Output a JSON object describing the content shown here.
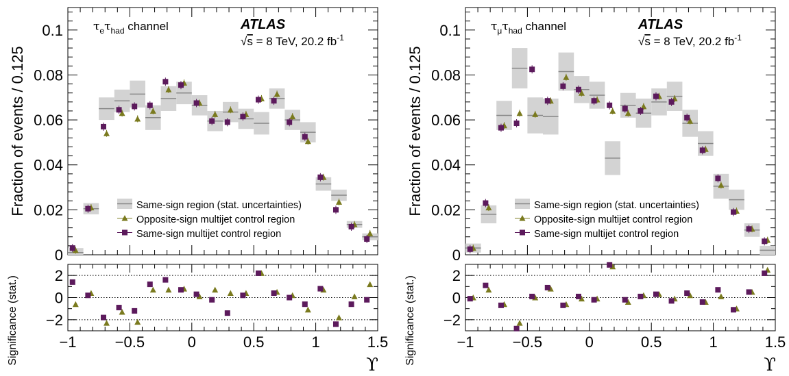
{
  "chart_data": [
    {
      "type": "scatter",
      "channel_label": "τeτhad channel",
      "channel_tau": "τ",
      "channel_sub1": "e",
      "channel_sub2": "had",
      "channel_word": "channel",
      "experiment": "ATLAS",
      "energy_label": "√s = 8 TeV, 20.2 fb",
      "energy_prefix": "s",
      "energy_text": " = 8 TeV, 20.2 fb",
      "energy_sup": "-1",
      "ylabel": "Fraction of events / 0.125",
      "ylabel_bottom": "Significance (stat.)",
      "xlabel": "ϒ",
      "xlim": [
        -1.0,
        1.5
      ],
      "ylim": [
        0,
        0.11
      ],
      "ylim_bottom": [
        -3,
        3
      ],
      "x_ticks": [
        "−1",
        "−0.5",
        "0",
        "0.5",
        "1",
        "1.5"
      ],
      "y_ticks": [
        "0",
        "0.02",
        "0.04",
        "0.06",
        "0.08",
        "0.1"
      ],
      "y_ticks_bottom": [
        "−2",
        "0",
        "2"
      ],
      "legend_position": "center-left",
      "legend": [
        "Same-sign region (stat. uncertainties)",
        "Opposite-sign multijet control region",
        "Same-sign multijet control region"
      ],
      "colors": {
        "box": "#d3d3d3",
        "line": "#888888",
        "triangle": "#7a7a1e",
        "square": "#5c1a5c"
      },
      "series": [
        {
          "name": "Same-sign region (stat. uncertainties)",
          "marker": "box",
          "points": [
            [
              -0.9375,
              0.001,
              0.002
            ],
            [
              -0.8125,
              0.0205,
              0.0025
            ],
            [
              -0.6875,
              0.065,
              0.005
            ],
            [
              -0.5625,
              0.0685,
              0.005
            ],
            [
              -0.4375,
              0.0715,
              0.006
            ],
            [
              -0.3125,
              0.061,
              0.0055
            ],
            [
              -0.1875,
              0.0695,
              0.0055
            ],
            [
              -0.0625,
              0.072,
              0.005
            ],
            [
              0.0625,
              0.0665,
              0.0045
            ],
            [
              0.1875,
              0.0595,
              0.0045
            ],
            [
              0.3125,
              0.0635,
              0.0045
            ],
            [
              0.4375,
              0.0605,
              0.0045
            ],
            [
              0.5625,
              0.0585,
              0.005
            ],
            [
              0.6875,
              0.0695,
              0.0045
            ],
            [
              0.8125,
              0.06,
              0.0045
            ],
            [
              0.9375,
              0.0545,
              0.0045
            ],
            [
              1.0625,
              0.0315,
              0.003
            ],
            [
              1.1875,
              0.0265,
              0.0025
            ],
            [
              1.3125,
              0.0135,
              0.0015
            ],
            [
              1.4375,
              0.008,
              0.0015
            ]
          ]
        },
        {
          "name": "Opposite-sign multijet control region",
          "marker": "triangle",
          "points": [
            [
              -0.9375,
              0.002
            ],
            [
              -0.8125,
              0.021
            ],
            [
              -0.6875,
              0.054
            ],
            [
              -0.5625,
              0.063
            ],
            [
              -0.4375,
              0.0605
            ],
            [
              -0.3125,
              0.064
            ],
            [
              -0.1875,
              0.0735
            ],
            [
              -0.0625,
              0.0765
            ],
            [
              0.0625,
              0.0675
            ],
            [
              0.1875,
              0.0625
            ],
            [
              0.3125,
              0.0645
            ],
            [
              0.4375,
              0.0625
            ],
            [
              0.5625,
              0.0695
            ],
            [
              0.6875,
              0.0715
            ],
            [
              0.8125,
              0.0615
            ],
            [
              0.9375,
              0.0505
            ],
            [
              1.0625,
              0.0345
            ],
            [
              1.1875,
              0.0235
            ],
            [
              1.3125,
              0.0135
            ],
            [
              1.4375,
              0.0095
            ]
          ]
        },
        {
          "name": "Same-sign multijet control region",
          "marker": "square",
          "points": [
            [
              -0.9625,
              0.003
            ],
            [
              -0.8375,
              0.0205
            ],
            [
              -0.7125,
              0.057
            ],
            [
              -0.5875,
              0.0645
            ],
            [
              -0.4625,
              0.066
            ],
            [
              -0.3375,
              0.0665
            ],
            [
              -0.2125,
              0.077
            ],
            [
              -0.0875,
              0.0755
            ],
            [
              0.0375,
              0.0675
            ],
            [
              0.1625,
              0.0595
            ],
            [
              0.2875,
              0.059
            ],
            [
              0.4125,
              0.0615
            ],
            [
              0.5375,
              0.069
            ],
            [
              0.6625,
              0.0685
            ],
            [
              0.7875,
              0.059
            ],
            [
              0.9125,
              0.0525
            ],
            [
              1.0375,
              0.0345
            ],
            [
              1.1625,
              0.02
            ],
            [
              1.2875,
              0.0125
            ],
            [
              1.4125,
              0.007
            ]
          ]
        }
      ],
      "significance": {
        "triangle": [
          [
            -0.9375,
            -0.6
          ],
          [
            -0.8125,
            0.4
          ],
          [
            -0.6875,
            -2.3
          ],
          [
            -0.5625,
            -1.3
          ],
          [
            -0.4375,
            -2.2
          ],
          [
            -0.3125,
            0.7
          ],
          [
            -0.1875,
            0.7
          ],
          [
            -0.0625,
            0.8
          ],
          [
            0.0625,
            0.1
          ],
          [
            0.1875,
            0.7
          ],
          [
            0.3125,
            0.4
          ],
          [
            0.4375,
            0.4
          ],
          [
            0.5625,
            2.2
          ],
          [
            0.6875,
            0.5
          ],
          [
            0.8125,
            0.2
          ],
          [
            0.9375,
            -1.1
          ],
          [
            1.0625,
            0.7
          ],
          [
            1.1875,
            -1.8
          ],
          [
            1.3125,
            0.1
          ],
          [
            1.4375,
            1.2
          ]
        ],
        "square": [
          [
            -0.9625,
            1.4
          ],
          [
            -0.8375,
            0.2
          ],
          [
            -0.7125,
            -1.8
          ],
          [
            -0.5875,
            -0.9
          ],
          [
            -0.4625,
            -1.2
          ],
          [
            -0.3375,
            1.2
          ],
          [
            -0.2125,
            1.6
          ],
          [
            -0.0875,
            0.7
          ],
          [
            0.0375,
            0.3
          ],
          [
            0.1625,
            -0.2
          ],
          [
            0.2875,
            -1.4
          ],
          [
            0.4125,
            0.2
          ],
          [
            0.5375,
            2.2
          ],
          [
            0.6625,
            0.4
          ],
          [
            0.7875,
            0.0
          ],
          [
            0.9125,
            -0.6
          ],
          [
            1.0375,
            0.8
          ],
          [
            1.1625,
            -2.4
          ],
          [
            1.2875,
            -0.6
          ],
          [
            1.4125,
            -0.2
          ]
        ]
      }
    },
    {
      "type": "scatter",
      "channel_label": "τμτhad channel",
      "channel_tau": "τ",
      "channel_sub1": "μ",
      "channel_sub2": "had",
      "channel_word": "channel",
      "experiment": "ATLAS",
      "energy_label": "√s = 8 TeV, 20.2 fb",
      "energy_prefix": "s",
      "energy_text": " = 8 TeV, 20.2 fb",
      "energy_sup": "-1",
      "ylabel": "Fraction of events / 0.125",
      "ylabel_bottom": "Significance (stat.)",
      "xlabel": "ϒ",
      "xlim": [
        -1.0,
        1.5
      ],
      "ylim": [
        0,
        0.11
      ],
      "ylim_bottom": [
        -3,
        3
      ],
      "x_ticks": [
        "−1",
        "−0.5",
        "0",
        "0.5",
        "1",
        "1.5"
      ],
      "y_ticks": [
        "0",
        "0.02",
        "0.04",
        "0.06",
        "0.08",
        "0.1"
      ],
      "y_ticks_bottom": [
        "−2",
        "0",
        "2"
      ],
      "legend_position": "center-left",
      "legend": [
        "Same-sign region (stat. uncertainties)",
        "Opposite-sign multijet control region",
        "Same-sign multijet control region"
      ],
      "colors": {
        "box": "#d3d3d3",
        "line": "#888888",
        "triangle": "#7a7a1e",
        "square": "#5c1a5c"
      },
      "series": [
        {
          "name": "Same-sign region (stat. uncertainties)",
          "marker": "box",
          "points": [
            [
              -0.9375,
              0.003,
              0.002
            ],
            [
              -0.8125,
              0.018,
              0.004
            ],
            [
              -0.6875,
              0.062,
              0.0065
            ],
            [
              -0.5625,
              0.083,
              0.009
            ],
            [
              -0.4375,
              0.062,
              0.008
            ],
            [
              -0.3125,
              0.0615,
              0.008
            ],
            [
              -0.1875,
              0.0815,
              0.0085
            ],
            [
              -0.0625,
              0.0735,
              0.006
            ],
            [
              0.0625,
              0.071,
              0.006
            ],
            [
              0.1875,
              0.043,
              0.0075
            ],
            [
              0.3125,
              0.0665,
              0.0055
            ],
            [
              0.4375,
              0.063,
              0.0065
            ],
            [
              0.5625,
              0.068,
              0.006
            ],
            [
              0.6875,
              0.0705,
              0.0065
            ],
            [
              0.8125,
              0.0585,
              0.006
            ],
            [
              0.9375,
              0.0495,
              0.0055
            ],
            [
              1.0625,
              0.0305,
              0.0055
            ],
            [
              1.1875,
              0.0245,
              0.0045
            ],
            [
              1.3125,
              0.011,
              0.003
            ],
            [
              1.4375,
              0.002,
              0.002
            ]
          ]
        },
        {
          "name": "Opposite-sign multijet control region",
          "marker": "triangle",
          "points": [
            [
              -0.9375,
              0.003
            ],
            [
              -0.8125,
              0.021
            ],
            [
              -0.6875,
              0.0575
            ],
            [
              -0.5625,
              0.063
            ],
            [
              -0.4375,
              0.0625
            ],
            [
              -0.3125,
              0.0685
            ],
            [
              -0.1875,
              0.079
            ],
            [
              -0.0625,
              0.072
            ],
            [
              0.0625,
              0.069
            ],
            [
              0.1875,
              0.064
            ],
            [
              0.3125,
              0.063
            ],
            [
              0.4375,
              0.066
            ],
            [
              0.5625,
              0.0705
            ],
            [
              0.6875,
              0.0695
            ],
            [
              0.8125,
              0.0595
            ],
            [
              0.9375,
              0.047
            ],
            [
              1.0625,
              0.031
            ],
            [
              1.1875,
              0.0195
            ],
            [
              1.3125,
              0.0115
            ],
            [
              1.4375,
              0.0065
            ]
          ]
        },
        {
          "name": "Same-sign multijet control region",
          "marker": "square",
          "points": [
            [
              -0.9625,
              0.0025
            ],
            [
              -0.8375,
              0.023
            ],
            [
              -0.7125,
              0.0565
            ],
            [
              -0.5875,
              0.0585
            ],
            [
              -0.4625,
              0.0825
            ],
            [
              -0.3375,
              0.0685
            ],
            [
              -0.2125,
              0.075
            ],
            [
              -0.0875,
              0.0735
            ],
            [
              0.0375,
              0.0685
            ],
            [
              0.1625,
              0.0665
            ],
            [
              0.2875,
              0.065
            ],
            [
              0.4125,
              0.064
            ],
            [
              0.5375,
              0.0705
            ],
            [
              0.6625,
              0.068
            ],
            [
              0.7875,
              0.061
            ],
            [
              0.9125,
              0.0465
            ],
            [
              1.0375,
              0.034
            ],
            [
              1.1625,
              0.019
            ],
            [
              1.2875,
              0.0115
            ],
            [
              1.4125,
              0.006
            ]
          ]
        }
      ],
      "significance": {
        "triangle": [
          [
            -0.9375,
            0.0
          ],
          [
            -0.8125,
            0.7
          ],
          [
            -0.6875,
            -0.6
          ],
          [
            -0.5625,
            -2.3
          ],
          [
            -0.4375,
            0.0
          ],
          [
            -0.3125,
            0.8
          ],
          [
            -0.1875,
            -0.6
          ],
          [
            -0.0625,
            -0.1
          ],
          [
            0.0625,
            -0.1
          ],
          [
            0.1875,
            2.8
          ],
          [
            0.3125,
            -0.4
          ],
          [
            0.4375,
            0.2
          ],
          [
            0.5625,
            0.3
          ],
          [
            0.6875,
            -0.1
          ],
          [
            0.8125,
            0.2
          ],
          [
            0.9375,
            -0.4
          ],
          [
            1.0625,
            0.1
          ],
          [
            1.1875,
            -1.0
          ],
          [
            1.3125,
            0.5
          ],
          [
            1.4375,
            2.5
          ]
        ],
        "square": [
          [
            -0.9625,
            -0.1
          ],
          [
            -0.8375,
            1.1
          ],
          [
            -0.7125,
            -0.7
          ],
          [
            -0.5875,
            -2.8
          ],
          [
            -0.4625,
            0.1
          ],
          [
            -0.3375,
            0.9
          ],
          [
            -0.2125,
            -0.7
          ],
          [
            -0.0875,
            0.1
          ],
          [
            0.0375,
            -0.2
          ],
          [
            0.1625,
            3.2
          ],
          [
            0.2875,
            -0.2
          ],
          [
            0.4125,
            0.1
          ],
          [
            0.5375,
            0.3
          ],
          [
            0.6625,
            -0.3
          ],
          [
            0.7875,
            0.4
          ],
          [
            0.9125,
            -0.4
          ],
          [
            1.0375,
            0.7
          ],
          [
            1.1625,
            -1.1
          ],
          [
            1.2875,
            0.5
          ],
          [
            1.4125,
            2.2
          ]
        ]
      }
    }
  ]
}
